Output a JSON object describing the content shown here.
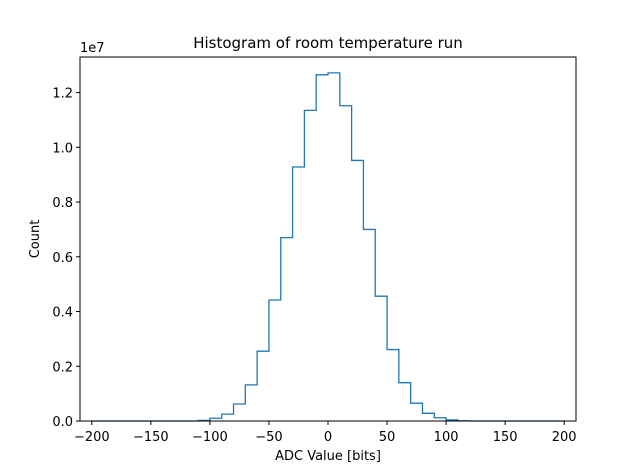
{
  "chart_data": {
    "type": "histogram",
    "title": "Histogram of room temperature run",
    "xlabel": "ADC Value [bits]",
    "ylabel": "Count",
    "y_offset_label": "1e7",
    "y_scale_factor": 10000000,
    "xlim": [
      -210,
      210
    ],
    "ylim": [
      0,
      13300000
    ],
    "xticks": [
      -200,
      -150,
      -100,
      -50,
      0,
      50,
      100,
      150,
      200
    ],
    "yticks": [
      0,
      0.2,
      0.4,
      0.6,
      0.8,
      1.0,
      1.2
    ],
    "grid": false,
    "color": "#1f77b4",
    "bin_edges": [
      -200,
      -190,
      -180,
      -170,
      -160,
      -150,
      -140,
      -130,
      -120,
      -110,
      -100,
      -90,
      -80,
      -70,
      -60,
      -50,
      -40,
      -30,
      -20,
      -10,
      0,
      10,
      20,
      30,
      40,
      50,
      60,
      70,
      80,
      90,
      100,
      110,
      120,
      130,
      140,
      150,
      160,
      170,
      180,
      190,
      200
    ],
    "counts": [
      0,
      0,
      0,
      0,
      0,
      0,
      0,
      0,
      0,
      20000,
      100000,
      250000,
      620000,
      1320000,
      2550000,
      4420000,
      6700000,
      9280000,
      11350000,
      12650000,
      12720000,
      11520000,
      9520000,
      7000000,
      4560000,
      2610000,
      1400000,
      650000,
      280000,
      120000,
      40000,
      10000,
      0,
      0,
      0,
      0,
      0,
      0,
      0,
      0
    ]
  }
}
